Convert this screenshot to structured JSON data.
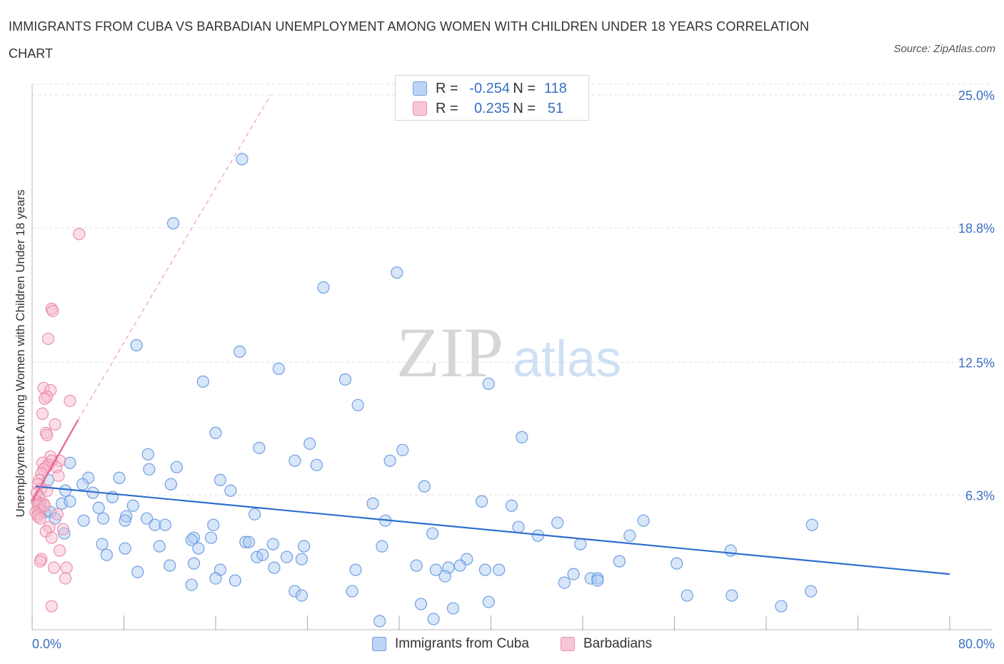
{
  "title": "IMMIGRANTS FROM CUBA VS BARBADIAN UNEMPLOYMENT AMONG WOMEN WITH CHILDREN UNDER 18 YEARS CORRELATION CHART",
  "source": "Source: ZipAtlas.com",
  "watermark": {
    "zip": "ZIP",
    "atlas": "atlas"
  },
  "colors": {
    "blue_fill": "#a9c8f2",
    "blue_stroke": "#6f9fe0",
    "blue_line": "#2f6fd0",
    "pink_fill": "#f6b8cb",
    "pink_stroke": "#ec8fad",
    "pink_line": "#e8608e",
    "axis_label": "#3a6fc4",
    "grid": "#e2e2e2"
  },
  "legend_stats": [
    {
      "r_label": "R =",
      "r_value": "-0.254",
      "n_label": "N =",
      "n_value": "118",
      "series": "blue"
    },
    {
      "r_label": "R =",
      "r_value": "0.235",
      "n_label": "N =",
      "n_value": "51",
      "series": "pink"
    }
  ],
  "legend": [
    {
      "label": "Immigrants from Cuba",
      "series": "blue"
    },
    {
      "label": "Barbadians",
      "series": "pink"
    }
  ],
  "chart_data": {
    "type": "scatter",
    "title": "IMMIGRANTS FROM CUBA VS BARBADIAN UNEMPLOYMENT AMONG WOMEN WITH CHILDREN UNDER 18 YEARS CORRELATION CHART",
    "xlabel": "",
    "ylabel": "Unemployment Among Women with Children Under 18 years",
    "xlim": [
      0,
      80
    ],
    "ylim": [
      0,
      25
    ],
    "x_ticks": [
      0,
      8,
      16,
      24,
      32,
      40,
      48,
      56,
      64,
      72,
      80
    ],
    "x_tick_labels": [
      {
        "value": 0,
        "label": "0.0%"
      },
      {
        "value": 80,
        "label": "80.0%"
      }
    ],
    "y_ticks": [
      {
        "value": 6.3,
        "label": "6.3%"
      },
      {
        "value": 12.5,
        "label": "12.5%"
      },
      {
        "value": 18.8,
        "label": "18.8%"
      },
      {
        "value": 25.0,
        "label": "25.0%"
      }
    ],
    "grid": "horizontal dashed",
    "legend_placement": "bottom-center",
    "series": [
      {
        "name": "Immigrants from Cuba",
        "color": "#6f9fe0",
        "trend": {
          "x": [
            0.3,
            80
          ],
          "y": [
            6.7,
            2.6
          ],
          "style": "solid"
        },
        "points": [
          [
            18.3,
            22.0
          ],
          [
            12.3,
            19.0
          ],
          [
            31.8,
            16.7
          ],
          [
            25.4,
            16.0
          ],
          [
            9.1,
            13.3
          ],
          [
            18.1,
            13.0
          ],
          [
            21.5,
            12.2
          ],
          [
            14.9,
            11.6
          ],
          [
            27.3,
            11.7
          ],
          [
            39.8,
            11.5
          ],
          [
            28.4,
            10.5
          ],
          [
            16.0,
            9.2
          ],
          [
            42.7,
            9.0
          ],
          [
            24.2,
            8.7
          ],
          [
            19.8,
            8.5
          ],
          [
            32.3,
            8.4
          ],
          [
            10.1,
            8.2
          ],
          [
            22.9,
            7.9
          ],
          [
            31.2,
            7.9
          ],
          [
            3.3,
            7.8
          ],
          [
            12.6,
            7.6
          ],
          [
            24.8,
            7.7
          ],
          [
            10.2,
            7.5
          ],
          [
            4.9,
            7.1
          ],
          [
            7.6,
            7.1
          ],
          [
            16.4,
            7.0
          ],
          [
            1.4,
            7.0
          ],
          [
            4.4,
            6.8
          ],
          [
            12.1,
            6.8
          ],
          [
            34.2,
            6.7
          ],
          [
            17.3,
            6.5
          ],
          [
            2.9,
            6.5
          ],
          [
            5.3,
            6.4
          ],
          [
            7.0,
            6.2
          ],
          [
            39.2,
            6.0
          ],
          [
            29.7,
            5.9
          ],
          [
            41.8,
            5.8
          ],
          [
            8.8,
            5.8
          ],
          [
            5.8,
            5.7
          ],
          [
            0.7,
            5.9
          ],
          [
            2.6,
            5.9
          ],
          [
            3.3,
            6.0
          ],
          [
            1.1,
            5.5
          ],
          [
            8.2,
            5.3
          ],
          [
            19.4,
            5.4
          ],
          [
            10.0,
            5.2
          ],
          [
            6.2,
            5.2
          ],
          [
            4.5,
            5.1
          ],
          [
            30.8,
            5.1
          ],
          [
            45.8,
            5.0
          ],
          [
            53.3,
            5.1
          ],
          [
            68.0,
            4.9
          ],
          [
            8.1,
            5.1
          ],
          [
            10.7,
            4.9
          ],
          [
            11.6,
            4.9
          ],
          [
            15.8,
            4.9
          ],
          [
            42.4,
            4.8
          ],
          [
            2.8,
            4.5
          ],
          [
            34.9,
            4.5
          ],
          [
            44.1,
            4.4
          ],
          [
            52.1,
            4.4
          ],
          [
            14.1,
            4.3
          ],
          [
            13.9,
            4.2
          ],
          [
            15.6,
            4.3
          ],
          [
            18.6,
            4.1
          ],
          [
            18.9,
            4.1
          ],
          [
            21.0,
            4.0
          ],
          [
            6.1,
            4.0
          ],
          [
            11.1,
            3.9
          ],
          [
            30.5,
            3.9
          ],
          [
            47.8,
            4.0
          ],
          [
            14.5,
            3.8
          ],
          [
            23.7,
            3.9
          ],
          [
            8.1,
            3.8
          ],
          [
            60.9,
            3.7
          ],
          [
            6.5,
            3.5
          ],
          [
            19.6,
            3.4
          ],
          [
            20.1,
            3.5
          ],
          [
            22.2,
            3.4
          ],
          [
            23.5,
            3.3
          ],
          [
            37.9,
            3.3
          ],
          [
            12.0,
            3.0
          ],
          [
            14.1,
            3.1
          ],
          [
            51.2,
            3.2
          ],
          [
            56.2,
            3.1
          ],
          [
            33.5,
            3.0
          ],
          [
            36.3,
            2.9
          ],
          [
            37.3,
            3.0
          ],
          [
            21.1,
            2.9
          ],
          [
            16.4,
            2.8
          ],
          [
            28.2,
            2.8
          ],
          [
            40.7,
            2.8
          ],
          [
            35.2,
            2.8
          ],
          [
            39.5,
            2.8
          ],
          [
            9.2,
            2.7
          ],
          [
            47.2,
            2.6
          ],
          [
            48.7,
            2.4
          ],
          [
            49.3,
            2.4
          ],
          [
            36.0,
            2.5
          ],
          [
            17.7,
            2.3
          ],
          [
            49.3,
            2.3
          ],
          [
            16.0,
            2.4
          ],
          [
            46.4,
            2.2
          ],
          [
            13.9,
            2.1
          ],
          [
            27.9,
            1.8
          ],
          [
            67.9,
            1.8
          ],
          [
            22.9,
            1.8
          ],
          [
            23.5,
            1.6
          ],
          [
            61.0,
            1.6
          ],
          [
            57.1,
            1.6
          ],
          [
            39.8,
            1.3
          ],
          [
            33.9,
            1.2
          ],
          [
            65.3,
            1.1
          ],
          [
            36.7,
            1.0
          ],
          [
            35.0,
            0.5
          ],
          [
            30.3,
            0.4
          ],
          [
            1.6,
            5.5
          ],
          [
            2.0,
            5.2
          ]
        ]
      },
      {
        "name": "Barbadians",
        "color": "#ec8fad",
        "trend": {
          "x": [
            0.0,
            4.0
          ],
          "y": [
            6.0,
            9.8
          ],
          "style": "solid",
          "extended": {
            "x": [
              4.0,
              20.8
            ],
            "y": [
              9.8,
              25.0
            ],
            "style": "dashed"
          }
        },
        "points": [
          [
            4.1,
            18.5
          ],
          [
            1.7,
            15.0
          ],
          [
            1.8,
            14.9
          ],
          [
            1.4,
            13.6
          ],
          [
            1.0,
            11.3
          ],
          [
            1.6,
            11.2
          ],
          [
            1.3,
            10.9
          ],
          [
            1.1,
            10.8
          ],
          [
            3.3,
            10.7
          ],
          [
            0.9,
            10.1
          ],
          [
            2.0,
            9.6
          ],
          [
            1.2,
            9.2
          ],
          [
            1.3,
            9.1
          ],
          [
            1.6,
            8.1
          ],
          [
            2.4,
            7.9
          ],
          [
            1.7,
            7.9
          ],
          [
            0.9,
            7.8
          ],
          [
            1.4,
            7.7
          ],
          [
            1.2,
            7.6
          ],
          [
            2.1,
            7.6
          ],
          [
            1.0,
            7.5
          ],
          [
            0.8,
            7.3
          ],
          [
            2.3,
            7.2
          ],
          [
            0.6,
            7.0
          ],
          [
            0.5,
            6.8
          ],
          [
            0.8,
            6.6
          ],
          [
            0.4,
            6.4
          ],
          [
            1.3,
            6.5
          ],
          [
            0.6,
            6.2
          ],
          [
            0.4,
            6.0
          ],
          [
            0.6,
            5.9
          ],
          [
            1.0,
            5.9
          ],
          [
            0.5,
            5.8
          ],
          [
            0.7,
            5.6
          ],
          [
            0.3,
            5.5
          ],
          [
            0.5,
            5.4
          ],
          [
            1.1,
            5.8
          ],
          [
            2.2,
            5.4
          ],
          [
            0.5,
            5.3
          ],
          [
            0.7,
            5.2
          ],
          [
            1.5,
            4.8
          ],
          [
            2.7,
            4.7
          ],
          [
            1.2,
            4.6
          ],
          [
            1.7,
            4.3
          ],
          [
            2.4,
            3.7
          ],
          [
            0.8,
            3.3
          ],
          [
            0.7,
            3.2
          ],
          [
            1.9,
            2.9
          ],
          [
            3.0,
            2.9
          ],
          [
            2.9,
            2.4
          ],
          [
            1.7,
            1.1
          ]
        ]
      }
    ]
  }
}
